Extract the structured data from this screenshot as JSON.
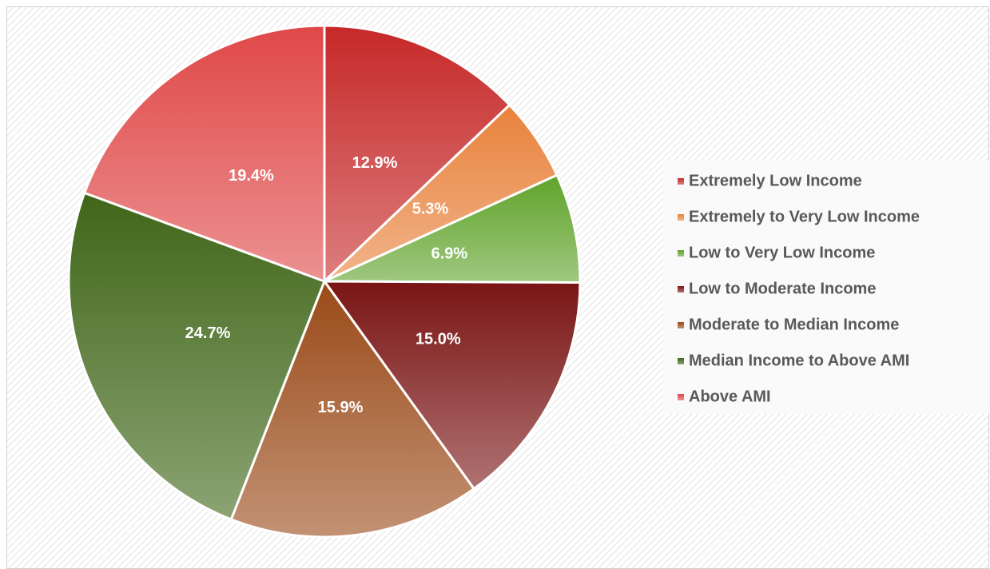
{
  "chart_data": {
    "type": "pie",
    "categories": [
      "Extremely Low Income",
      "Extremely to Very Low Income",
      "Low to Very Low Income",
      "Low to Moderate Income",
      "Moderate to Median Income",
      "Median Income to Above AMI",
      "Above AMI"
    ],
    "values": [
      12.9,
      5.3,
      6.9,
      15.0,
      15.9,
      24.7,
      19.4
    ],
    "value_labels": [
      "12.9%",
      "5.3%",
      "6.9%",
      "15.0%",
      "15.9%",
      "24.7%",
      "19.4%"
    ],
    "colors": [
      "#c62828",
      "#e8823c",
      "#5fa32a",
      "#7a1414",
      "#9a4a18",
      "#3f6618",
      "#e04848"
    ],
    "legend": "right"
  }
}
